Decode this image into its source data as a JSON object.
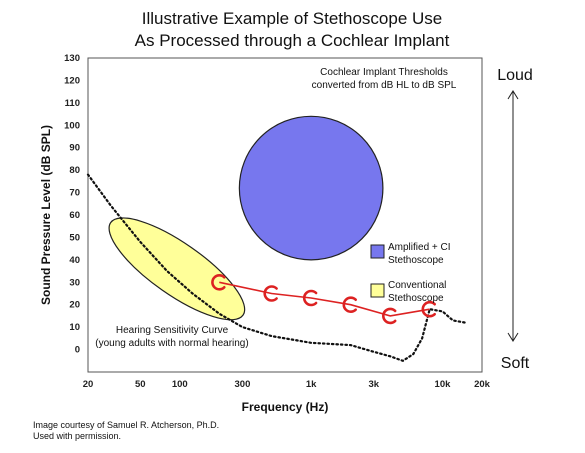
{
  "title_line1": "Illustrative Example of Stethoscope Use",
  "title_line2": "As Processed through a Cochlear Implant",
  "credit_line1": "Image courtesy of Samuel R. Atcherson, Ph.D.",
  "credit_line2": "Used with permission.",
  "side_top": "Loud",
  "side_bottom": "Soft",
  "colors": {
    "amplified_ci": "#7777ee",
    "conventional": "#ffff99",
    "ci_thresholds": "#dd2222",
    "hearing_curve": "#111111"
  },
  "chart_data": {
    "type": "line",
    "xlabel": "Frequency (Hz)",
    "ylabel": "Sound Pressure Level (dB SPL)",
    "x_scale": "log",
    "xlim": [
      20,
      20000
    ],
    "ylim": [
      -10,
      130
    ],
    "x_ticks": [
      {
        "value": 20,
        "label": "20"
      },
      {
        "value": 50,
        "label": "50"
      },
      {
        "value": 100,
        "label": "100"
      },
      {
        "value": 300,
        "label": "300"
      },
      {
        "value": 1000,
        "label": "1k"
      },
      {
        "value": 3000,
        "label": "3k"
      },
      {
        "value": 10000,
        "label": "10k"
      },
      {
        "value": 20000,
        "label": "20k"
      }
    ],
    "y_ticks": [
      0,
      10,
      20,
      30,
      40,
      50,
      60,
      70,
      80,
      90,
      100,
      110,
      120,
      130
    ],
    "annotations": {
      "ci_note_line1": "Cochlear Implant Thresholds",
      "ci_note_line2": "converted from dB HL to dB SPL",
      "curve_note_line1": "Hearing Sensitivity Curve",
      "curve_note_line2": "(young adults with normal hearing)"
    },
    "legend": [
      {
        "key": "amplified",
        "line1": "Amplified + CI",
        "line2": "Stethoscope",
        "color": "#7777ee"
      },
      {
        "key": "conventional",
        "line1": "Conventional",
        "line2": "Stethoscope",
        "color": "#ffff99"
      }
    ],
    "series": [
      {
        "name": "Cochlear Implant Thresholds",
        "style": "red-line-with-C-markers",
        "x": [
          200,
          500,
          1000,
          2000,
          4000,
          8000
        ],
        "y": [
          30,
          25,
          23,
          20,
          15,
          18
        ]
      },
      {
        "name": "Hearing Sensitivity Curve",
        "style": "dotted",
        "x": [
          20,
          30,
          50,
          80,
          125,
          200,
          300,
          500,
          1000,
          2000,
          3000,
          4000,
          5000,
          6000,
          7000,
          8000,
          10000,
          12000,
          15000
        ],
        "y": [
          78,
          64,
          48,
          35,
          25,
          16,
          10,
          6,
          3,
          2,
          -1,
          -3,
          -5,
          -2,
          5,
          18,
          17,
          13,
          12
        ]
      }
    ],
    "regions": [
      {
        "name": "Amplified + CI Stethoscope",
        "shape": "circle",
        "center_x": 1000,
        "center_y": 72,
        "radius_db": 32
      },
      {
        "name": "Conventional Stethoscope",
        "shape": "ellipse",
        "center_x": 95,
        "center_y": 36,
        "length_db": 72,
        "width_db": 23,
        "tilt_deg": -35
      }
    ]
  }
}
